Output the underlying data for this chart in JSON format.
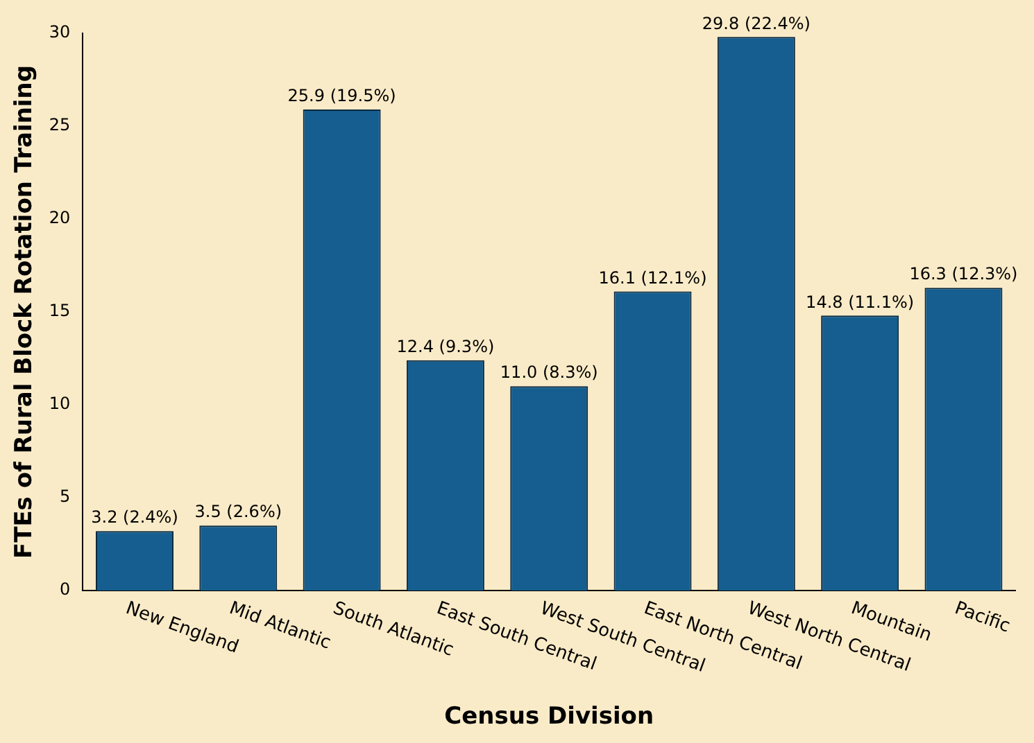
{
  "chart_data": {
    "type": "bar",
    "xlabel": "Census Division",
    "ylabel": "FTEs of Rural Block Rotation Training",
    "categories": [
      "New England",
      "Mid Atlantic",
      "South Atlantic",
      "East South Central",
      "West South Central",
      "East North Central",
      "West North Central",
      "Mountain",
      "Pacific"
    ],
    "values": [
      3.2,
      3.5,
      25.9,
      12.4,
      11.0,
      16.1,
      29.8,
      14.8,
      16.3
    ],
    "value_labels": [
      "3.2 (2.4%)",
      "3.5 (2.6%)",
      "25.9 (19.5%)",
      "12.4 (9.3%)",
      "11.0 (8.3%)",
      "16.1 (12.1%)",
      "29.8 (22.4%)",
      "14.8 (11.1%)",
      "16.3 (12.3%)"
    ],
    "color": "#155e8f",
    "ylim": [
      0,
      30
    ],
    "yticks": [
      0,
      5,
      10,
      15,
      20,
      25,
      30
    ],
    "grid": false,
    "legend": false
  }
}
